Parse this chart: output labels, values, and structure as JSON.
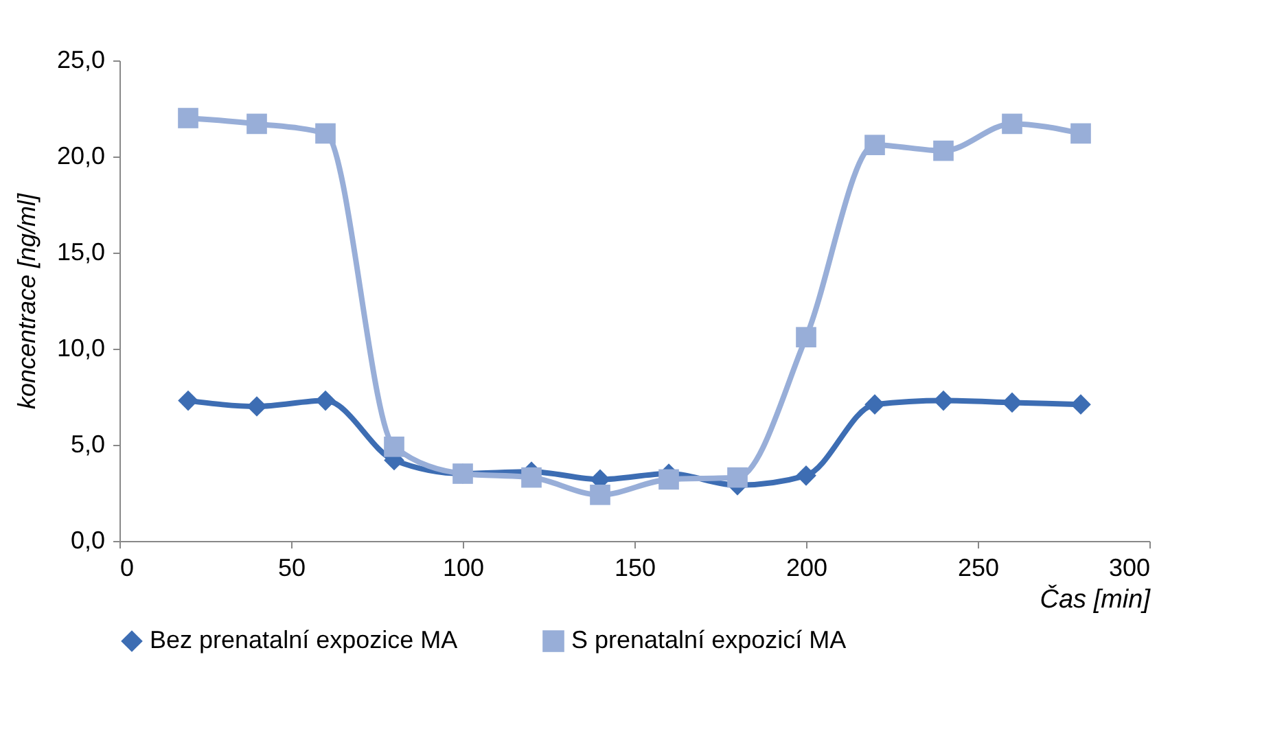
{
  "chart_data": {
    "type": "line",
    "xlabel": "Čas [min]",
    "ylabel": "koncentrace [ng/ml]",
    "xlim": [
      0,
      300
    ],
    "xticks": [
      0,
      50,
      100,
      150,
      200,
      250,
      300
    ],
    "ylim": [
      0,
      25
    ],
    "yticks": [
      {
        "value": 0,
        "label": "0,0"
      },
      {
        "value": 5,
        "label": "5,0"
      },
      {
        "value": 10,
        "label": "10,0"
      },
      {
        "value": 15,
        "label": "15,0"
      },
      {
        "value": 20,
        "label": "20,0"
      },
      {
        "value": 25,
        "label": "25,0"
      }
    ],
    "x": [
      20,
      40,
      60,
      80,
      100,
      120,
      140,
      160,
      180,
      200,
      220,
      240,
      260,
      280
    ],
    "series": [
      {
        "name": "Bez prenatalní expozice MA",
        "color": "#3d6db3",
        "marker": "diamond",
        "values": [
          7.3,
          7.0,
          7.3,
          4.2,
          3.5,
          3.6,
          3.2,
          3.5,
          2.9,
          3.4,
          7.1,
          7.3,
          7.2,
          7.1
        ]
      },
      {
        "name": "S prenatalní expozicí MA",
        "color": "#98aed8",
        "marker": "square",
        "values": [
          22.0,
          21.7,
          21.2,
          4.9,
          3.5,
          3.3,
          2.4,
          3.2,
          3.3,
          10.6,
          20.6,
          20.3,
          21.7,
          21.2
        ]
      }
    ],
    "grid": false,
    "legend": "bottom",
    "line_style": "solid"
  }
}
